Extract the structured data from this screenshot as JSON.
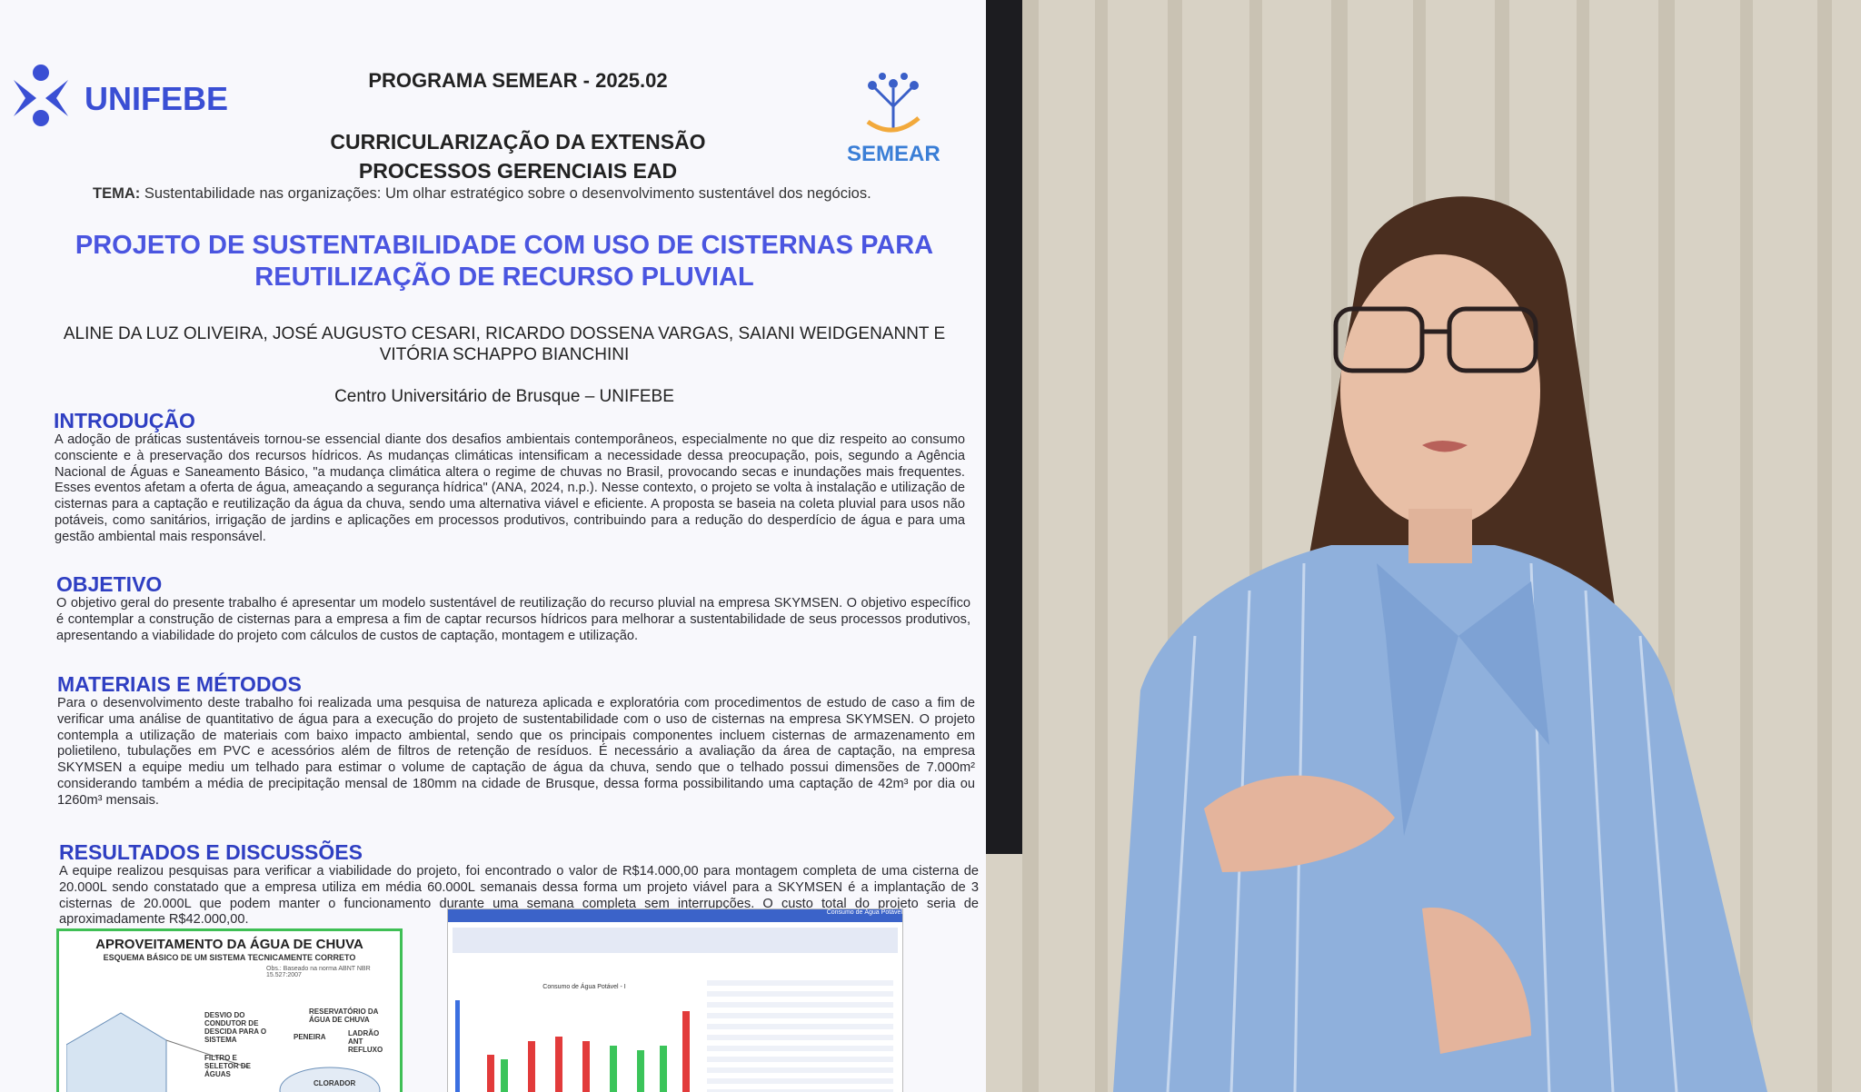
{
  "poster": {
    "logo": "UNIFEBE",
    "program": "PROGRAMA SEMEAR - 2025.02",
    "semear_logo": "SEMEAR",
    "subtitle_lines": [
      "CURRICULARIZAÇÃO DA EXTENSÃO",
      "PROCESSOS GERENCIAIS EAD"
    ],
    "theme_label": "TEMA:",
    "theme": "Sustentabilidade nas organizações: Um olhar estratégico sobre o desenvolvimento sustentável dos negócios.",
    "title_lines": [
      "PROJETO DE SUSTENTABILIDADE COM USO DE CISTERNAS PARA",
      "REUTILIZAÇÃO DE RECURSO PLUVIAL"
    ],
    "author_lines": [
      "ALINE DA LUZ OLIVEIRA, JOSÉ AUGUSTO CESARI, RICARDO DOSSENA VARGAS, SAIANI WEIDGENANNT E",
      "VITÓRIA SCHAPPO BIANCHINI"
    ],
    "institution": "Centro Universitário de Brusque – UNIFEBE",
    "sections": [
      {
        "heading": "INTRODUÇÃO",
        "text": "A adoção de práticas sustentáveis tornou-se essencial diante dos desafios ambientais contemporâneos, especialmente no que diz respeito ao consumo consciente e à preservação dos recursos hídricos. As mudanças climáticas intensificam a necessidade dessa preocupação, pois, segundo a Agência Nacional de Águas e Saneamento Básico, \"a mudança climática altera o regime de chuvas no Brasil, provocando secas e inundações mais frequentes. Esses eventos afetam a oferta de água, ameaçando a segurança hídrica\" (ANA, 2024, n.p.). Nesse contexto, o projeto se volta à instalação e utilização de cisternas para a captação e reutilização da água da chuva, sendo uma alternativa viável e eficiente. A proposta se baseia na coleta pluvial para usos não potáveis, como sanitários, irrigação de jardins e aplicações em processos produtivos, contribuindo para a redução do desperdício de água e para uma gestão ambiental mais responsável."
      },
      {
        "heading": "OBJETIVO",
        "text": "O objetivo geral do presente trabalho é apresentar um modelo sustentável de reutilização do recurso pluvial na empresa SKYMSEN. O objetivo específico é contemplar a construção de cisternas para a empresa a fim de captar recursos hídricos para melhorar a sustentabilidade de seus processos produtivos, apresentando a viabilidade do projeto com cálculos de custos de captação, montagem e utilização."
      },
      {
        "heading": "MATERIAIS E MÉTODOS",
        "text": "Para o desenvolvimento deste trabalho foi realizada uma pesquisa de natureza aplicada e exploratória com procedimentos de estudo de caso a fim de verificar uma análise de quantitativo de água para a execução do projeto de sustentabilidade com o uso de cisternas na empresa SKYMSEN. O projeto contempla a utilização de materiais com baixo impacto ambiental, sendo que os principais componentes incluem cisternas de armazenamento em polietileno, tubulações em PVC e acessórios além de filtros de retenção de resíduos. É necessário a avaliação da área de captação, na empresa SKYMSEN a equipe mediu um telhado para estimar o volume de captação de água da chuva, sendo que o telhado possui dimensões de 7.000m² considerando também a média de precipitação mensal de 180mm na cidade de Brusque, dessa forma possibilitando uma captação de 42m³ por dia ou 1260m³ mensais."
      },
      {
        "heading": "RESULTADOS E DISCUSSÕES",
        "text": "A equipe realizou pesquisas para verificar a viabilidade do projeto, foi encontrado o valor de R$14.000,00 para montagem completa de uma cisterna de 20.000L sendo constatado que a empresa utiliza em média 60.000L semanais dessa forma um projeto viável para a SKYMSEN é a implantação de 3 cisternas de 20.000L que podem manter o funcionamento durante uma semana completa sem interrupções. O custo total do projeto seria de aproximadamente R$42.000,00."
      }
    ],
    "figure": {
      "title": "APROVEITAMENTO DA ÁGUA DE CHUVA",
      "subtitle": "ESQUEMA BÁSICO DE UM SISTEMA TECNICAMENTE CORRETO",
      "note": "Obs.: Baseado na norma ABNT NBR 15.527:2007",
      "labels": [
        "DESVIO DO CONDUTOR DE DESCIDA PARA O SISTEMA",
        "RESERVATÓRIO DA ÁGUA DE CHUVA",
        "PENEIRA",
        "LADRÃO ANT REFLUXO",
        "FILTRO E SELETOR DE ÁGUAS",
        "CLORADOR"
      ]
    },
    "dashboard": {
      "header": "Consumo de Água Potável",
      "chart_title": "Consumo de Água Potável - I"
    }
  }
}
